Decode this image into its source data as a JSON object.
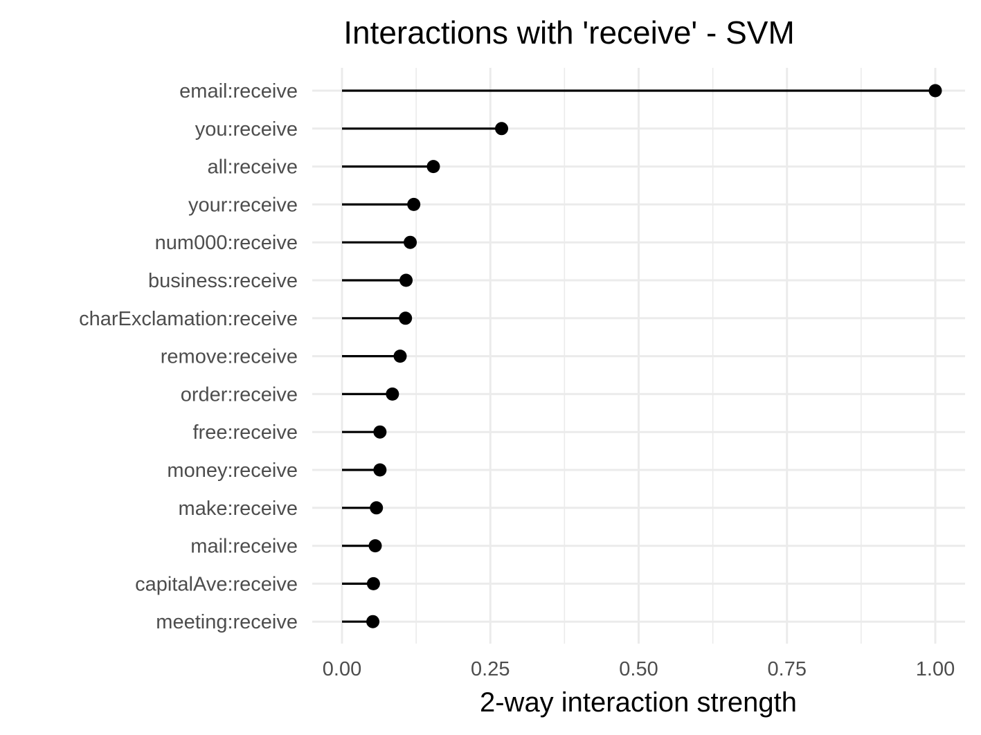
{
  "chart_data": {
    "type": "lollipop",
    "title": "Interactions with 'receive' - SVM",
    "xlabel": "2-way interaction strength",
    "ylabel": "",
    "xlim": [
      0,
      1.0
    ],
    "x_ticks": [
      "0.00",
      "0.25",
      "0.50",
      "0.75",
      "1.00"
    ],
    "x_tick_values": [
      0,
      0.25,
      0.5,
      0.75,
      1.0
    ],
    "grid": true,
    "legend": "none",
    "colors": {
      "mark": "#000000",
      "grid": "#ebebeb",
      "tick_text": "#4d4d4d",
      "title_text": "#000000"
    },
    "categories": [
      "email:receive",
      "you:receive",
      "all:receive",
      "your:receive",
      "num000:receive",
      "business:receive",
      "charExclamation:receive",
      "remove:receive",
      "order:receive",
      "free:receive",
      "money:receive",
      "make:receive",
      "mail:receive",
      "capitalAve:receive",
      "meeting:receive"
    ],
    "values": [
      1.0,
      0.269,
      0.154,
      0.121,
      0.115,
      0.108,
      0.107,
      0.098,
      0.085,
      0.064,
      0.064,
      0.058,
      0.056,
      0.053,
      0.052
    ]
  }
}
